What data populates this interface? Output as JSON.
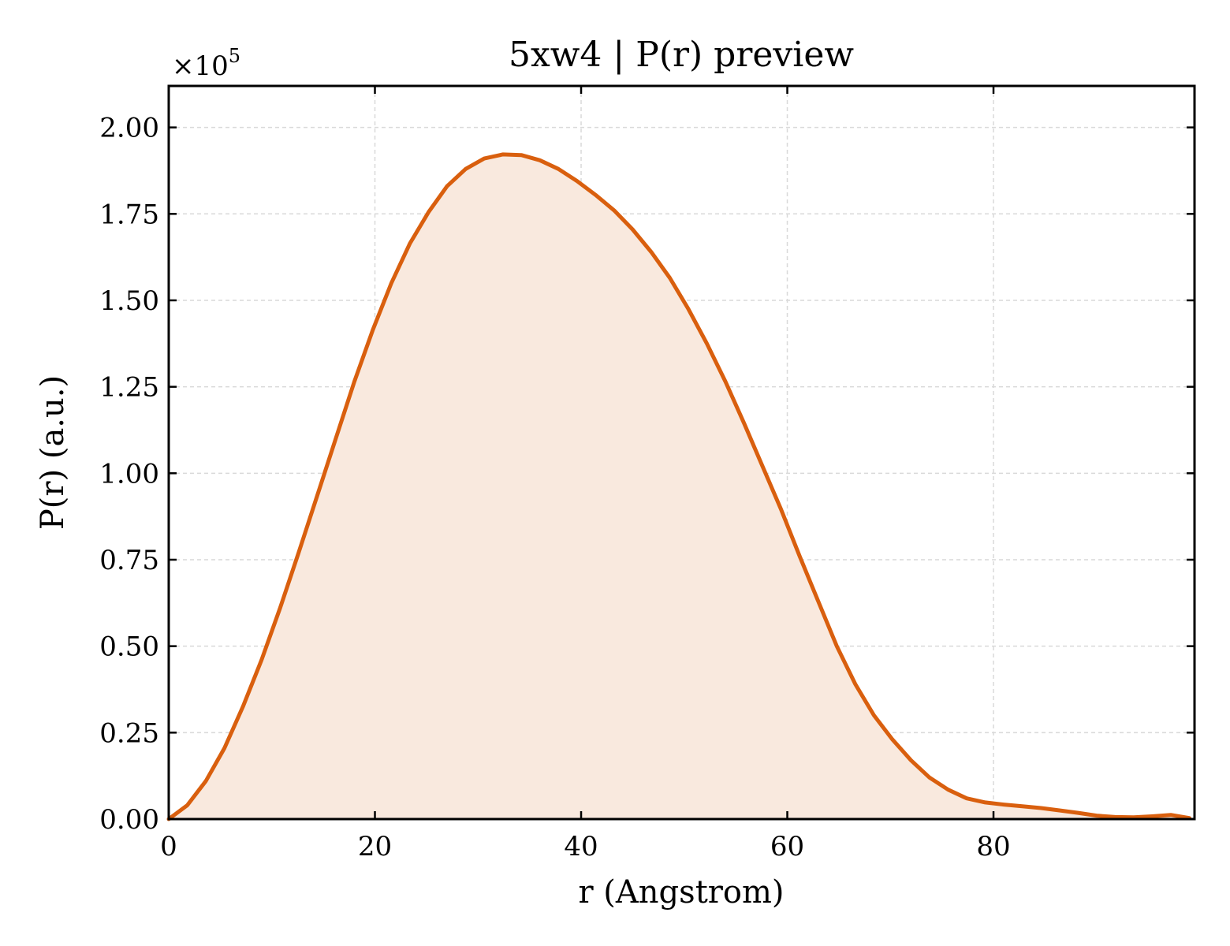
{
  "chart_data": {
    "type": "area",
    "title": "5xw4 | P(r) preview",
    "xlabel": "r (Angstrom)",
    "ylabel": "P(r) (a.u.)",
    "y_multiplier": {
      "base": "×10",
      "exponent": "5"
    },
    "xlim": [
      0,
      99.5
    ],
    "ylim": [
      0,
      2.12
    ],
    "x_ticks": [
      0,
      20,
      40,
      60,
      80
    ],
    "x_tick_labels": [
      "0",
      "20",
      "40",
      "60",
      "80"
    ],
    "y_ticks": [
      0,
      0.25,
      0.5,
      0.75,
      1.0,
      1.25,
      1.5,
      1.75,
      2.0
    ],
    "y_tick_labels": [
      "0.00",
      "0.25",
      "0.50",
      "0.75",
      "1.00",
      "1.25",
      "1.50",
      "1.75",
      "2.00"
    ],
    "grid": true,
    "colors": {
      "line": "#d95f0e",
      "fill": "#f9e9de",
      "grid": "#d9d9d9"
    },
    "series": [
      {
        "x": [
          0,
          1.8,
          3.6,
          5.4,
          7.2,
          9.0,
          10.8,
          12.6,
          14.4,
          16.2,
          18.0,
          19.8,
          21.6,
          23.4,
          25.2,
          27.0,
          28.8,
          30.6,
          32.4,
          34.2,
          36.0,
          37.8,
          39.6,
          41.4,
          43.2,
          45.0,
          46.8,
          48.6,
          50.4,
          52.2,
          54.0,
          55.8,
          57.6,
          59.4,
          61.2,
          63.0,
          64.8,
          66.6,
          68.4,
          70.2,
          72.0,
          73.8,
          75.6,
          77.4,
          79.2,
          81.0,
          82.8,
          84.6,
          86.4,
          88.2,
          90.0,
          91.8,
          93.6,
          95.4,
          97.2,
          99.0
        ],
        "y": [
          0.0,
          0.04,
          0.11,
          0.205,
          0.325,
          0.46,
          0.61,
          0.77,
          0.935,
          1.1,
          1.265,
          1.415,
          1.55,
          1.665,
          1.755,
          1.83,
          1.88,
          1.91,
          1.922,
          1.92,
          1.905,
          1.88,
          1.845,
          1.805,
          1.76,
          1.705,
          1.64,
          1.565,
          1.475,
          1.375,
          1.265,
          1.145,
          1.02,
          0.895,
          0.76,
          0.63,
          0.5,
          0.39,
          0.3,
          0.23,
          0.17,
          0.12,
          0.085,
          0.06,
          0.048,
          0.042,
          0.037,
          0.032,
          0.025,
          0.018,
          0.01,
          0.006,
          0.005,
          0.008,
          0.012,
          0.003
        ]
      }
    ]
  }
}
